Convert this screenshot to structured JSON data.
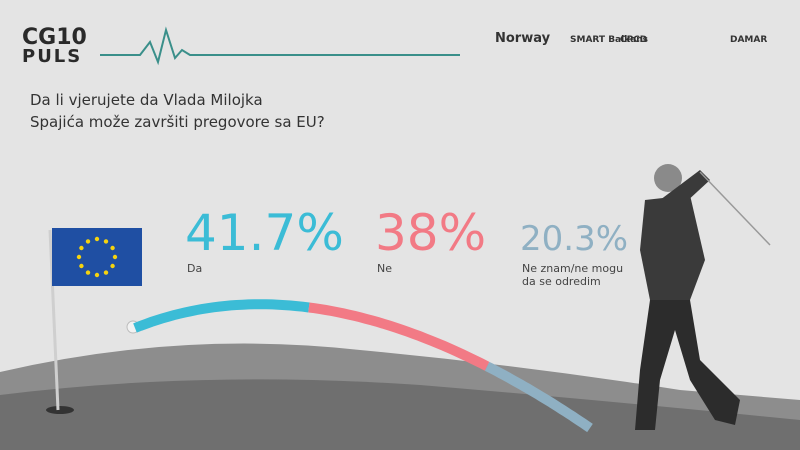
{
  "header": {
    "logo_top": "CG10",
    "logo_bottom": "PULS",
    "sponsors": [
      "Norway",
      "SMART Balkans",
      "CPCD",
      "DAMAR"
    ]
  },
  "chart_data": {
    "type": "arc",
    "title_lines": [
      "Da li vjerujete da Vlada Milojka",
      "Spajića može završiti pregovore sa EU?"
    ],
    "categories": [
      "Da",
      "Ne",
      "Ne znam/ne mogu da se odredim"
    ],
    "values": [
      41.7,
      38,
      20.3
    ],
    "value_labels": [
      "41.7%",
      "38%",
      "20.3%"
    ],
    "colors": [
      "#3bbcd6",
      "#f27a85",
      "#8fb0c3"
    ]
  }
}
